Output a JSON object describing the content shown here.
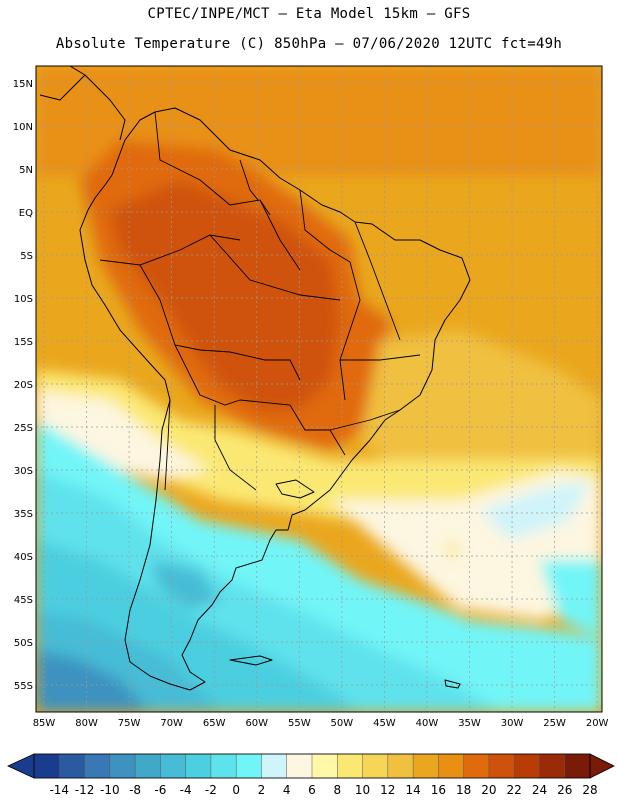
{
  "header": {
    "line1": "CPTEC/INPE/MCT –  Eta Model 15km – GFS",
    "line2": "Absolute Temperature (C) 850hPa – 07/06/2020 12UTC fct=49h"
  },
  "axes": {
    "lat_labels": [
      "15N",
      "10N",
      "5N",
      "EQ",
      "5S",
      "10S",
      "15S",
      "20S",
      "25S",
      "30S",
      "35S",
      "40S",
      "45S",
      "50S",
      "55S"
    ],
    "lat_values": [
      15,
      10,
      5,
      0,
      -5,
      -10,
      -15,
      -20,
      -25,
      -30,
      -35,
      -40,
      -45,
      -50,
      -55
    ],
    "lon_labels": [
      "85W",
      "80W",
      "75W",
      "70W",
      "65W",
      "60W",
      "55W",
      "50W",
      "45W",
      "40W",
      "35W",
      "30W",
      "25W",
      "20W"
    ],
    "lon_values": [
      -85,
      -80,
      -75,
      -70,
      -65,
      -60,
      -55,
      -50,
      -45,
      -40,
      -35,
      -30,
      -25,
      -20
    ]
  },
  "colorbar": {
    "labels": [
      "-14",
      "-12",
      "-10",
      "-8",
      "-6",
      "-4",
      "-2",
      "0",
      "2",
      "4",
      "6",
      "8",
      "10",
      "12",
      "14",
      "16",
      "18",
      "20",
      "22",
      "24",
      "26",
      "28"
    ],
    "colors": [
      "#1a3c8f",
      "#2a5aa0",
      "#3a78b5",
      "#3d92c0",
      "#42a8c8",
      "#46bcd6",
      "#4ccfe0",
      "#5ee2ec",
      "#72f5f7",
      "#cff4fa",
      "#fdf6e0",
      "#fff8a8",
      "#fbe873",
      "#f5d656",
      "#f0c040",
      "#eaa71e",
      "#e99012",
      "#e06a0e",
      "#cf520c",
      "#b83c08",
      "#9a2a08",
      "#7a1a08"
    ],
    "min": -14,
    "step": 2
  },
  "map": {
    "region": "South America",
    "variable": "Absolute Temperature (C) 850hPa"
  }
}
